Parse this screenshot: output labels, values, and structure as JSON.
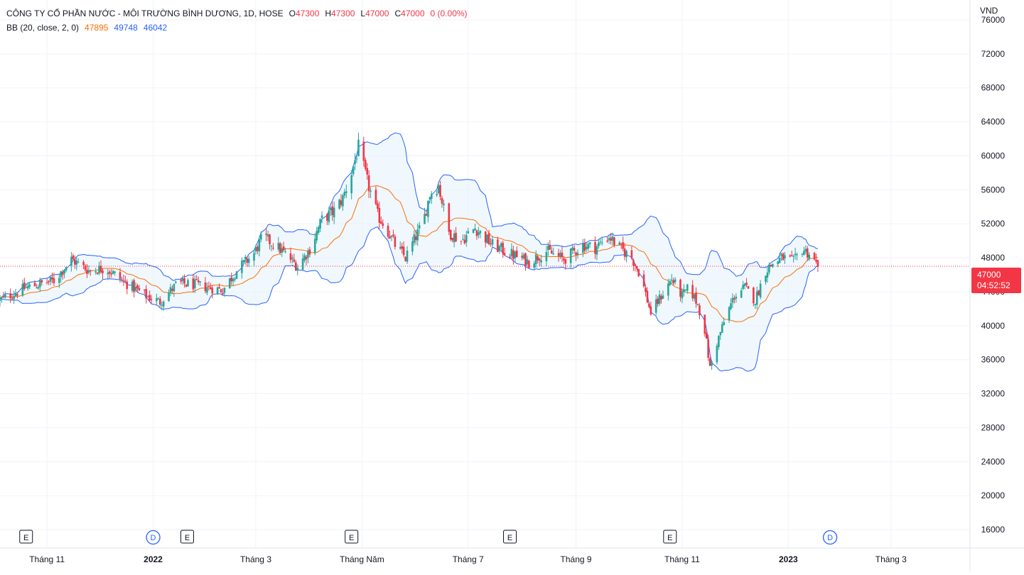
{
  "header": {
    "title": "CÔNG TY CỔ PHẦN NƯỚC - MÔI TRƯỜNG BÌNH DƯƠNG, 1D, HOSE",
    "ohlc": [
      {
        "key": "O",
        "value": "47300"
      },
      {
        "key": "H",
        "value": "47300"
      },
      {
        "key": "L",
        "value": "47000"
      },
      {
        "key": "C",
        "value": "47000"
      }
    ],
    "change": "0 (0.00%)",
    "indicator": {
      "name": "BB (20, close, 2, 0)",
      "basis": "47895",
      "upper": "49748",
      "lower": "46042"
    }
  },
  "price_axis": {
    "currency": "VND"
  },
  "last_price": {
    "value": "47000",
    "countdown": "04:52:52"
  },
  "colors": {
    "up": "#26a69a",
    "down": "#f23645",
    "basis": "#ff6d00",
    "band": "#2962ff",
    "band_fill": "#e3f2fd",
    "grid": "#f0f3fa"
  },
  "event_markers": [
    {
      "type": "E",
      "date": "Nov 2021"
    },
    {
      "type": "D",
      "date": "Jan 2022"
    },
    {
      "type": "E",
      "date": "Jan 2022"
    },
    {
      "type": "E",
      "date": "Apr 2022"
    },
    {
      "type": "E",
      "date": "Jul 2022"
    },
    {
      "type": "E",
      "date": "Oct 2022"
    },
    {
      "type": "D",
      "date": "Jan 2023"
    }
  ],
  "chart_data": {
    "type": "candlestick",
    "title": "CÔNG TY CỔ PHẦN NƯỚC - MÔI TRƯỜNG BÌNH DƯƠNG, 1D, HOSE",
    "ylabel": "VND",
    "ylim": [
      14000,
      78000
    ],
    "y_ticks": [
      16000,
      20000,
      24000,
      28000,
      32000,
      36000,
      40000,
      44000,
      48000,
      52000,
      56000,
      60000,
      64000,
      68000,
      72000,
      76000
    ],
    "x_ticks": [
      {
        "date": "2021-11-01",
        "label": "Tháng 11",
        "bold": false
      },
      {
        "date": "2022-01-01",
        "label": "2022",
        "bold": true
      },
      {
        "date": "2022-03-01",
        "label": "Tháng 3",
        "bold": false
      },
      {
        "date": "2022-05-01",
        "label": "Tháng Năm",
        "bold": false
      },
      {
        "date": "2022-07-01",
        "label": "Tháng 7",
        "bold": false
      },
      {
        "date": "2022-09-01",
        "label": "Tháng 9",
        "bold": false
      },
      {
        "date": "2022-11-01",
        "label": "Tháng 11",
        "bold": false
      },
      {
        "date": "2023-01-01",
        "label": "2023",
        "bold": true
      },
      {
        "date": "2023-03-01",
        "label": "Tháng 3",
        "bold": false
      }
    ],
    "x_range": [
      "2021-10-05",
      "2023-04-15"
    ],
    "last_price": 47000,
    "price_trend": [
      [
        "2021-10-05",
        43000
      ],
      [
        "2021-10-20",
        44500
      ],
      [
        "2021-11-05",
        45300
      ],
      [
        "2021-11-15",
        47800
      ],
      [
        "2021-11-25",
        46500
      ],
      [
        "2021-12-05",
        46800
      ],
      [
        "2021-12-15",
        45200
      ],
      [
        "2021-12-28",
        43500
      ],
      [
        "2022-01-05",
        42800
      ],
      [
        "2022-01-15",
        45000
      ],
      [
        "2022-01-25",
        44800
      ],
      [
        "2022-02-10",
        44200
      ],
      [
        "2022-02-18",
        46500
      ],
      [
        "2022-02-28",
        48500
      ],
      [
        "2022-03-05",
        50500
      ],
      [
        "2022-03-15",
        49000
      ],
      [
        "2022-03-25",
        47000
      ],
      [
        "2022-04-01",
        49000
      ],
      [
        "2022-04-08",
        52500
      ],
      [
        "2022-04-15",
        53500
      ],
      [
        "2022-04-20",
        55000
      ],
      [
        "2022-04-25",
        58000
      ],
      [
        "2022-04-29",
        61000
      ],
      [
        "2022-05-04",
        57000
      ],
      [
        "2022-05-10",
        53000
      ],
      [
        "2022-05-15",
        51500
      ],
      [
        "2022-05-20",
        49500
      ],
      [
        "2022-05-26",
        48000
      ],
      [
        "2022-06-01",
        50500
      ],
      [
        "2022-06-05",
        52000
      ],
      [
        "2022-06-09",
        55500
      ],
      [
        "2022-06-14",
        56500
      ],
      [
        "2022-06-20",
        51000
      ],
      [
        "2022-06-27",
        50000
      ],
      [
        "2022-07-05",
        51500
      ],
      [
        "2022-07-15",
        49500
      ],
      [
        "2022-07-25",
        48500
      ],
      [
        "2022-08-05",
        47500
      ],
      [
        "2022-08-15",
        48800
      ],
      [
        "2022-08-25",
        47800
      ],
      [
        "2022-09-05",
        49500
      ],
      [
        "2022-09-12",
        49200
      ],
      [
        "2022-09-20",
        50500
      ],
      [
        "2022-09-26",
        49200
      ],
      [
        "2022-10-03",
        48000
      ],
      [
        "2022-10-08",
        46000
      ],
      [
        "2022-10-14",
        41500
      ],
      [
        "2022-10-20",
        43500
      ],
      [
        "2022-10-26",
        45500
      ],
      [
        "2022-11-01",
        43500
      ],
      [
        "2022-11-05",
        44500
      ],
      [
        "2022-11-10",
        42500
      ],
      [
        "2022-11-14",
        39500
      ],
      [
        "2022-11-17",
        35000
      ],
      [
        "2022-11-21",
        38000
      ],
      [
        "2022-11-26",
        41000
      ],
      [
        "2022-12-01",
        43500
      ],
      [
        "2022-12-07",
        44500
      ],
      [
        "2022-12-13",
        43000
      ],
      [
        "2022-12-19",
        46500
      ],
      [
        "2022-12-24",
        47500
      ],
      [
        "2022-12-29",
        48000
      ],
      [
        "2023-01-04",
        47500
      ],
      [
        "2023-01-09",
        49000
      ],
      [
        "2023-01-13",
        48500
      ],
      [
        "2023-01-18",
        47000
      ]
    ]
  }
}
